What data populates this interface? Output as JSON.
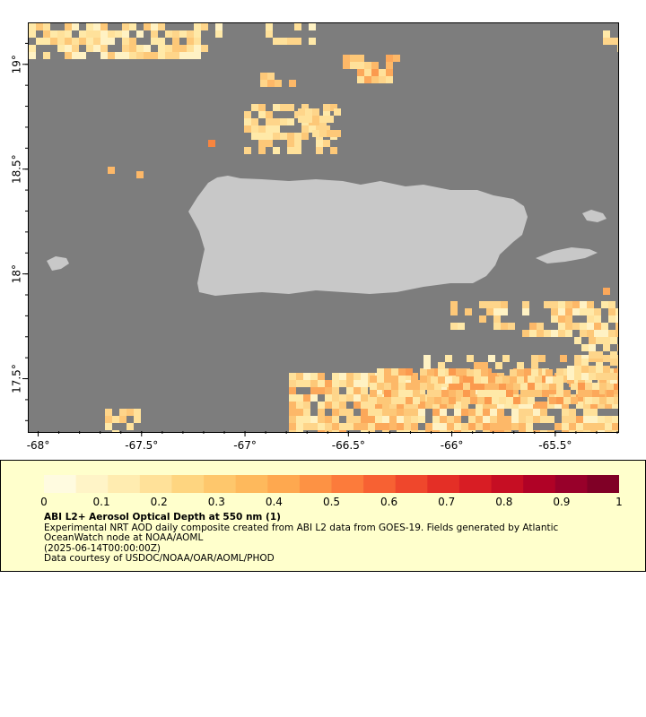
{
  "map": {
    "lon_range": [
      -68.05,
      -65.2
    ],
    "lat_range": [
      17.25,
      19.2
    ],
    "water_color": "#7d7d7d",
    "land_color": "#c8c8c8",
    "x_ticks": [
      {
        "value": -68.0,
        "label": "-68°"
      },
      {
        "value": -67.5,
        "label": "-67.5°"
      },
      {
        "value": -67.0,
        "label": "-67°"
      },
      {
        "value": -66.5,
        "label": "-66.5°"
      },
      {
        "value": -66.0,
        "label": "-66°"
      },
      {
        "value": -65.5,
        "label": "-65.5°"
      }
    ],
    "y_ticks": [
      {
        "value": 19.0,
        "label": "19°"
      },
      {
        "value": 18.5,
        "label": "18.5°"
      },
      {
        "value": 18.0,
        "label": "18°"
      },
      {
        "value": 17.5,
        "label": "17.5°"
      }
    ]
  },
  "colorbar": {
    "ticks": [
      "0",
      "0.1",
      "0.2",
      "0.3",
      "0.4",
      "0.5",
      "0.6",
      "0.7",
      "0.8",
      "0.9",
      "1"
    ],
    "colors": [
      "#fffbe0",
      "#fff4c7",
      "#ffecb0",
      "#ffe199",
      "#fed580",
      "#fec76c",
      "#feb95c",
      "#fea84f",
      "#fd9244",
      "#fc7b3b",
      "#f76133",
      "#ef472c",
      "#e42f26",
      "#d81d24",
      "#c60e23",
      "#b00226",
      "#98002a",
      "#800026"
    ]
  },
  "legend": {
    "title": "ABI L2+ Aerosol Optical Depth at 550 nm (1)",
    "line1": "Experimental NRT AOD daily composite created from ABI L2 data from GOES-19. Fields generated by Atlantic",
    "line2": "OceanWatch node at NOAA/AOML",
    "line3": "(2025-06-14T00:00:00Z)",
    "line4": "Data courtesy of USDOC/NOAA/OAR/AOML/PHOD"
  }
}
